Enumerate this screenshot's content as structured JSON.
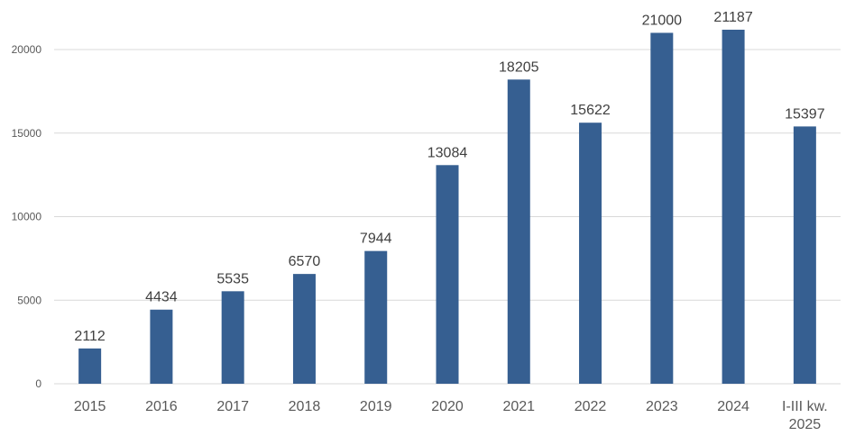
{
  "chart_data": {
    "type": "bar",
    "categories": [
      "2015",
      "2016",
      "2017",
      "2018",
      "2019",
      "2020",
      "2021",
      "2022",
      "2023",
      "2024",
      [
        "I-III kw.",
        "2025"
      ]
    ],
    "values": [
      2112,
      4434,
      5535,
      6570,
      7944,
      13084,
      18205,
      15622,
      21000,
      21187,
      15397
    ],
    "title": "",
    "xlabel": "",
    "ylabel": "",
    "ylim": [
      0,
      20000
    ],
    "yticks": [
      0,
      5000,
      10000,
      15000,
      20000
    ],
    "grid": true,
    "legend": "none",
    "colors": {
      "bar": "#365f91",
      "grid": "#d9d9d9",
      "text": "#595959"
    }
  }
}
